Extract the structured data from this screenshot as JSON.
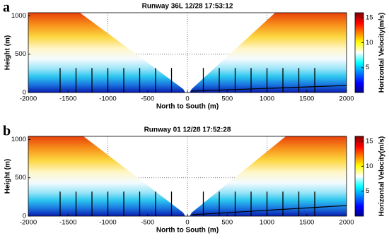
{
  "chart_data": [
    {
      "type": "heatmap",
      "panel_label": "a",
      "title": "Runway 36L 12/28 17:53:12",
      "xlabel": "North to South (m)",
      "ylabel": "Height (m)",
      "colorbar_label": "Horizontal Velocity(m/s)",
      "colormap": "jet",
      "xlim": [
        -2000,
        2000
      ],
      "xticks": [
        -2000,
        -1500,
        -1000,
        -500,
        0,
        500,
        1000,
        1500,
        2000
      ],
      "ylim": [
        0,
        1040
      ],
      "yticks": [
        0,
        500,
        1000
      ],
      "clim": [
        0,
        16
      ],
      "cticks": [
        5,
        10,
        15
      ],
      "grid_x": [
        -1000,
        0,
        1000
      ],
      "grid_y": [
        500
      ],
      "profile_x": [
        -1600,
        -1400,
        -1200,
        -1000,
        -800,
        -600,
        -400,
        -200,
        200,
        400,
        600,
        800,
        1000,
        1200,
        1400,
        1600
      ],
      "profile_top": 320
    },
    {
      "type": "heatmap",
      "panel_label": "b",
      "title": "Runway 01 12/28 17:52:28",
      "xlabel": "North to South (m)",
      "ylabel": "Height (m)",
      "colorbar_label": "Horizontal Velocity(m/s)",
      "colormap": "jet",
      "xlim": [
        -2000,
        2000
      ],
      "xticks": [
        -2000,
        -1500,
        -1000,
        -500,
        0,
        500,
        1000,
        1500,
        2000
      ],
      "ylim": [
        0,
        1040
      ],
      "yticks": [
        0,
        500,
        1000
      ],
      "clim": [
        0,
        16
      ],
      "cticks": [
        5,
        10,
        15
      ],
      "grid_x": [
        -1000,
        0,
        1000
      ],
      "grid_y": [
        500
      ],
      "profile_x": [
        -1600,
        -1400,
        -1200,
        -1000,
        -800,
        -600,
        -400,
        -200,
        200,
        400,
        600,
        800,
        1000,
        1200,
        1400,
        1600
      ],
      "profile_top": 320
    }
  ]
}
